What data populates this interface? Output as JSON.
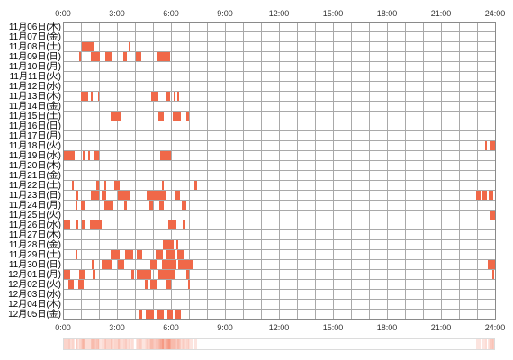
{
  "colors": {
    "activity": "#f06848"
  },
  "chart_data": {
    "type": "heatmap",
    "x_ticks": [
      "0:00",
      "3:00",
      "6:00",
      "9:00",
      "12:00",
      "15:00",
      "18:00",
      "21:00",
      "24:00"
    ],
    "xlim": [
      "0:00",
      "24:00"
    ],
    "grid": true,
    "rows": [
      {
        "label": "11月06日(木)",
        "blocks": []
      },
      {
        "label": "11月07日(金)",
        "blocks": []
      },
      {
        "label": "11月08日(土)",
        "blocks": [
          [
            "1:03",
            "1:45"
          ],
          [
            "3:39",
            "3:42"
          ]
        ]
      },
      {
        "label": "11月09日(日)",
        "blocks": [
          [
            "0:54",
            "1:00"
          ],
          [
            "1:33",
            "2:03"
          ],
          [
            "2:21",
            "2:42"
          ],
          [
            "3:21",
            "3:33"
          ],
          [
            "4:03",
            "4:21"
          ],
          [
            "5:12",
            "5:57"
          ]
        ]
      },
      {
        "label": "11月10日(月)",
        "blocks": []
      },
      {
        "label": "11月11日(火)",
        "blocks": []
      },
      {
        "label": "11月12日(水)",
        "blocks": []
      },
      {
        "label": "11月13日(木)",
        "blocks": [
          [
            "1:00",
            "1:24"
          ],
          [
            "1:33",
            "1:39"
          ],
          [
            "1:57",
            "2:00"
          ],
          [
            "4:54",
            "5:18"
          ],
          [
            "5:42",
            "5:57"
          ],
          [
            "6:09",
            "6:15"
          ],
          [
            "6:21",
            "6:27"
          ]
        ]
      },
      {
        "label": "11月14日(金)",
        "blocks": []
      },
      {
        "label": "11月15日(土)",
        "blocks": [
          [
            "2:39",
            "3:12"
          ],
          [
            "5:18",
            "5:36"
          ],
          [
            "6:06",
            "6:33"
          ],
          [
            "6:51",
            "7:00"
          ]
        ]
      },
      {
        "label": "11月16日(日)",
        "blocks": []
      },
      {
        "label": "11月17日(月)",
        "blocks": []
      },
      {
        "label": "11月18日(火)",
        "blocks": [
          [
            "23:27",
            "23:33"
          ],
          [
            "23:45",
            "24:00"
          ]
        ]
      },
      {
        "label": "11月19日(水)",
        "blocks": [
          [
            "0:00",
            "0:39"
          ],
          [
            "1:06",
            "1:15"
          ],
          [
            "1:24",
            "1:30"
          ],
          [
            "1:45",
            "2:00"
          ],
          [
            "5:24",
            "6:00"
          ]
        ]
      },
      {
        "label": "11月20日(木)",
        "blocks": []
      },
      {
        "label": "11月21日(金)",
        "blocks": []
      },
      {
        "label": "11月22日(土)",
        "blocks": [
          [
            "0:30",
            "0:36"
          ],
          [
            "1:51",
            "2:00"
          ],
          [
            "2:18",
            "2:24"
          ],
          [
            "2:51",
            "3:09"
          ],
          [
            "5:30",
            "5:36"
          ],
          [
            "7:18",
            "7:27"
          ]
        ]
      },
      {
        "label": "11月23日(日)",
        "blocks": [
          [
            "0:45",
            "0:51"
          ],
          [
            "1:33",
            "2:00"
          ],
          [
            "2:09",
            "2:24"
          ],
          [
            "3:03",
            "3:42"
          ],
          [
            "4:39",
            "5:45"
          ],
          [
            "6:12",
            "6:30"
          ],
          [
            "22:57",
            "23:12"
          ],
          [
            "23:18",
            "23:33"
          ],
          [
            "23:39",
            "23:54"
          ]
        ]
      },
      {
        "label": "11月24日(月)",
        "blocks": [
          [
            "0:42",
            "0:48"
          ],
          [
            "1:00",
            "1:15"
          ],
          [
            "2:18",
            "2:48"
          ],
          [
            "3:24",
            "3:33"
          ],
          [
            "4:48",
            "5:00"
          ],
          [
            "5:21",
            "5:36"
          ],
          [
            "6:36",
            "6:51"
          ]
        ]
      },
      {
        "label": "11月25日(火)",
        "blocks": [
          [
            "23:42",
            "24:00"
          ]
        ]
      },
      {
        "label": "11月26日(水)",
        "blocks": [
          [
            "0:00",
            "0:24"
          ],
          [
            "0:45",
            "0:51"
          ],
          [
            "1:03",
            "1:12"
          ],
          [
            "1:30",
            "2:09"
          ],
          [
            "5:51",
            "6:18"
          ],
          [
            "6:39",
            "6:48"
          ]
        ]
      },
      {
        "label": "11月27日(木)",
        "blocks": []
      },
      {
        "label": "11月28日(金)",
        "blocks": [
          [
            "5:33",
            "6:09"
          ],
          [
            "6:18",
            "6:24"
          ]
        ]
      },
      {
        "label": "11月29日(土)",
        "blocks": [
          [
            "0:42",
            "0:48"
          ],
          [
            "2:39",
            "3:09"
          ],
          [
            "3:27",
            "3:54"
          ],
          [
            "4:06",
            "4:24"
          ],
          [
            "5:09",
            "5:33"
          ],
          [
            "5:42",
            "6:15"
          ],
          [
            "6:21",
            "6:42"
          ]
        ]
      },
      {
        "label": "11月30日(日)",
        "blocks": [
          [
            "1:36",
            "1:42"
          ],
          [
            "2:09",
            "2:45"
          ],
          [
            "3:03",
            "3:24"
          ],
          [
            "4:51",
            "5:15"
          ],
          [
            "5:30",
            "6:18"
          ],
          [
            "6:24",
            "7:12"
          ],
          [
            "23:36",
            "24:00"
          ]
        ]
      },
      {
        "label": "12月01日(月)",
        "blocks": [
          [
            "0:03",
            "0:24"
          ],
          [
            "0:54",
            "1:15"
          ],
          [
            "1:39",
            "1:48"
          ],
          [
            "3:48",
            "3:57"
          ],
          [
            "4:06",
            "4:54"
          ],
          [
            "5:18",
            "6:15"
          ],
          [
            "6:51",
            "7:00"
          ],
          [
            "23:51",
            "23:57"
          ]
        ]
      },
      {
        "label": "12月02日(火)",
        "blocks": [
          [
            "0:18",
            "0:36"
          ],
          [
            "0:51",
            "1:09"
          ],
          [
            "4:33",
            "4:45"
          ],
          [
            "4:51",
            "5:15"
          ],
          [
            "5:42",
            "6:00"
          ],
          [
            "6:57",
            "7:03"
          ]
        ]
      },
      {
        "label": "12月03日(水)",
        "blocks": []
      },
      {
        "label": "12月04日(木)",
        "blocks": []
      },
      {
        "label": "12月05日(金)",
        "blocks": [
          [
            "4:15",
            "4:24"
          ],
          [
            "4:36",
            "5:03"
          ],
          [
            "5:12",
            "5:36"
          ],
          [
            "5:48",
            "6:06"
          ],
          [
            "6:15",
            "6:33"
          ]
        ]
      }
    ]
  }
}
